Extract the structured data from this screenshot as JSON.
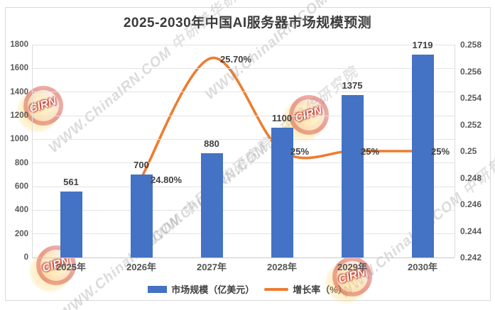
{
  "watermark": {
    "site_text": "WWW.ChinaIRN.COM",
    "org_text": "中研普华研究院",
    "badge_text": "CIRN"
  },
  "chart_data": {
    "type": "bar",
    "subtype": "combo-bar-line",
    "title": "2025-2030年中国AI服务器市场规模预测",
    "categories": [
      "2025年",
      "2026年",
      "2027年",
      "2028年",
      "2029年",
      "2030年"
    ],
    "series": [
      {
        "name": "市场规模（亿美元）",
        "chart_type": "bar",
        "axis": "primary",
        "color": "#4472C4",
        "values": [
          561,
          700,
          880,
          1100,
          1375,
          1719
        ],
        "data_labels": [
          "561",
          "700",
          "880",
          "1100",
          "1375",
          "1719"
        ]
      },
      {
        "name": "增长率（%）",
        "chart_type": "line",
        "axis": "secondary",
        "color": "#ED7D31",
        "smooth": true,
        "values": [
          null,
          0.248,
          0.257,
          0.25,
          0.25,
          0.25
        ],
        "data_labels": [
          "",
          "24.80%",
          "25.70%",
          "25%",
          "25%",
          "25%"
        ]
      }
    ],
    "primary_axis": {
      "min": 0,
      "max": 1800,
      "step": 200,
      "tick_labels": [
        "0",
        "200",
        "400",
        "600",
        "800",
        "1000",
        "1200",
        "1400",
        "1600",
        "1800"
      ]
    },
    "secondary_axis": {
      "min": 0.242,
      "max": 0.258,
      "step": 0.002,
      "tick_labels": [
        "0.242",
        "0.244",
        "0.246",
        "0.248",
        "0.25",
        "0.252",
        "0.254",
        "0.256",
        "0.258"
      ]
    },
    "grid": true,
    "legend_position": "bottom"
  },
  "colors": {
    "bar": "#4472C4",
    "line": "#ED7D31",
    "gridline": "#E3E3E3",
    "axis_line": "#C9C9C9",
    "frame_border": "#D9D9D9",
    "title_text": "#3B3B3B",
    "tick_text": "#595959"
  }
}
